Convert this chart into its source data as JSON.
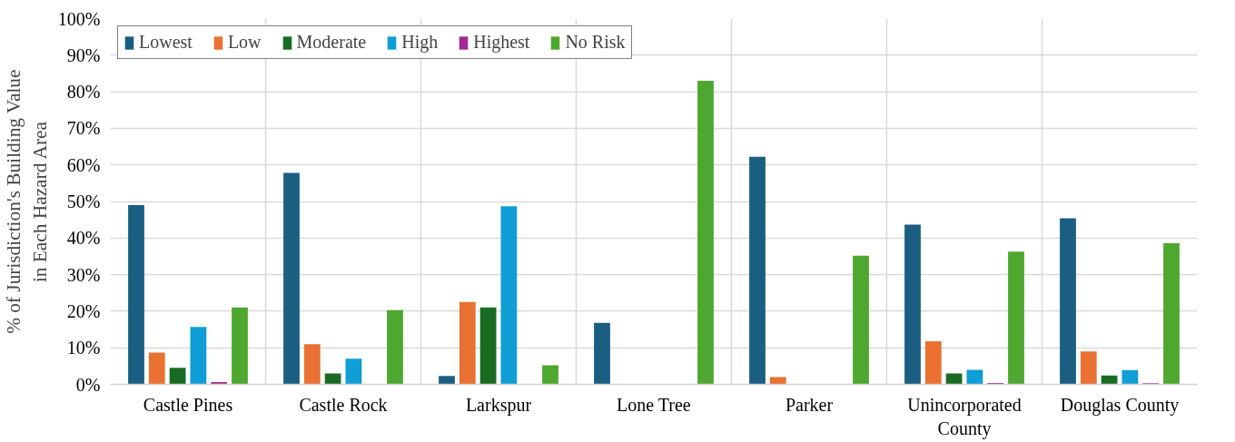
{
  "chart_data": {
    "type": "bar",
    "ylabel": "% of Jurisdiction's Building Value in Each Hazard Area",
    "categories": [
      "Castle Pines",
      "Castle Rock",
      "Larkspur",
      "Lone Tree",
      "Parker",
      "Unincorporated County",
      "Douglas County"
    ],
    "series": [
      {
        "name": "Lowest",
        "color": "#1a5e82",
        "values": [
          49,
          57.8,
          2.3,
          16.8,
          62.2,
          43.7,
          45.4
        ]
      },
      {
        "name": "Low",
        "color": "#e97132",
        "values": [
          8.7,
          11,
          22.5,
          0,
          2,
          11.8,
          9
        ]
      },
      {
        "name": "Moderate",
        "color": "#196b24",
        "values": [
          4.5,
          3,
          21,
          0,
          0,
          3,
          2.4
        ]
      },
      {
        "name": "High",
        "color": "#0f9ed5",
        "values": [
          15.7,
          7,
          48.7,
          0,
          0,
          4,
          3.9
        ]
      },
      {
        "name": "Highest",
        "color": "#a02b93",
        "values": [
          0.6,
          0,
          0,
          0,
          0,
          0.4,
          0.3
        ]
      },
      {
        "name": "No Risk",
        "color": "#4ea72e",
        "values": [
          21,
          20.3,
          5.2,
          83,
          35.2,
          36.3,
          38.6
        ]
      }
    ],
    "ylim": [
      0,
      100
    ],
    "yticks": [
      {
        "value": 0,
        "label": "0%"
      },
      {
        "value": 10,
        "label": "10%"
      },
      {
        "value": 20,
        "label": "20%"
      },
      {
        "value": 30,
        "label": "30%"
      },
      {
        "value": 40,
        "label": "40%"
      },
      {
        "value": 50,
        "label": "50%"
      },
      {
        "value": 60,
        "label": "60%"
      },
      {
        "value": 70,
        "label": "70%"
      },
      {
        "value": 80,
        "label": "80%"
      },
      {
        "value": 90,
        "label": "90%"
      },
      {
        "value": 100,
        "label": "100%"
      }
    ],
    "grid": true,
    "legend": "top"
  }
}
